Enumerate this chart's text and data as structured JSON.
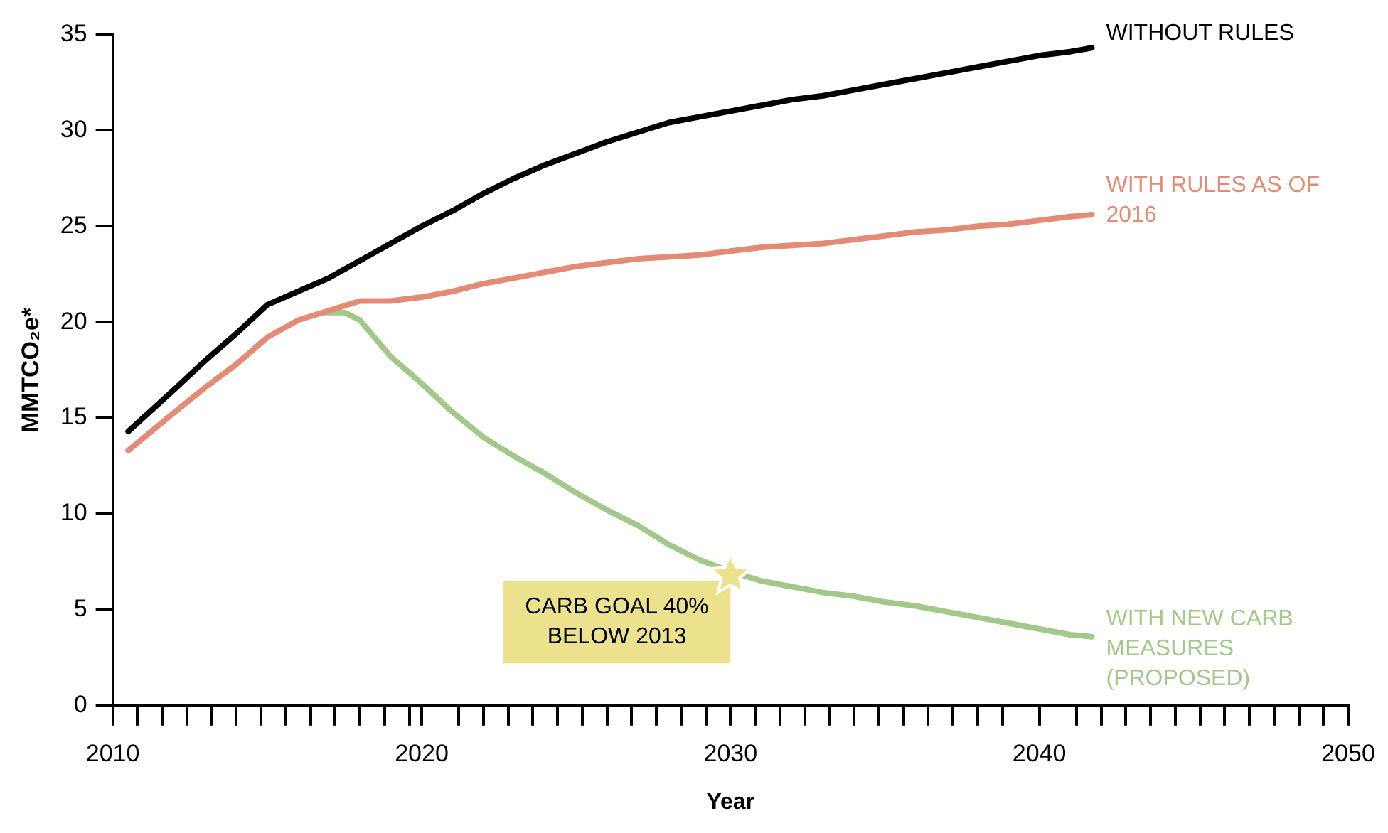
{
  "chart_data": {
    "type": "line",
    "xlabel": "Year",
    "ylabel": "MMTCO₂e*",
    "xlim": [
      2010,
      2050
    ],
    "ylim": [
      0,
      35
    ],
    "xticks": [
      2010,
      {
        "value": 2010.8,
        "label": null
      },
      {
        "value": 2011.6,
        "label": null
      },
      {
        "value": 2012.4,
        "label": null
      },
      {
        "value": 2013.2,
        "label": null
      },
      {
        "value": 2014,
        "label": null
      },
      {
        "value": 2014.8,
        "label": null
      },
      {
        "value": 2015.6,
        "label": null
      },
      {
        "value": 2016.4,
        "label": null
      },
      {
        "value": 2017.2,
        "label": null
      },
      {
        "value": 2018,
        "label": null
      },
      {
        "value": 2018.8,
        "label": null
      },
      {
        "value": 2019.6,
        "label": null
      },
      {
        "value": 2021.2,
        "label": null
      },
      {
        "value": 2022,
        "label": null
      },
      {
        "value": 2022.8,
        "label": null
      },
      {
        "value": 2023.6,
        "label": null
      },
      {
        "value": 2024.4,
        "label": null
      },
      {
        "value": 2025.2,
        "label": null
      },
      {
        "value": 2026,
        "label": null
      },
      {
        "value": 2026.8,
        "label": null
      },
      {
        "value": 2027.6,
        "label": null
      },
      {
        "value": 2028.4,
        "label": null
      },
      {
        "value": 2029.2,
        "label": null
      },
      {
        "value": 2030,
        "label": "2030"
      },
      {
        "value": 2030.8,
        "label": null
      },
      {
        "value": 2031.6,
        "label": null
      },
      {
        "value": 2032.4,
        "label": null
      },
      {
        "value": 2033.2,
        "label": null
      },
      {
        "value": 2034,
        "label": null
      },
      {
        "value": 2034.8,
        "label": null
      },
      {
        "value": 2035.6,
        "label": null
      },
      {
        "value": 2036.4,
        "label": null
      },
      {
        "value": 2037.2,
        "label": null
      },
      {
        "value": 2038,
        "label": null
      },
      {
        "value": 2038.8,
        "label": null
      },
      {
        "value": 2040,
        "label": "2040"
      },
      {
        "value": 2041.2,
        "label": null
      },
      {
        "value": 2042,
        "label": null
      },
      {
        "value": 2042.8,
        "label": null
      },
      {
        "value": 2043.6,
        "label": null
      },
      {
        "value": 2044.4,
        "label": null
      },
      {
        "value": 2045.2,
        "label": null
      },
      {
        "value": 2046,
        "label": null
      },
      {
        "value": 2046.8,
        "label": null
      },
      {
        "value": 2047.6,
        "label": null
      },
      {
        "value": 2048.4,
        "label": null
      },
      {
        "value": 2049.2,
        "label": null
      },
      2050,
      {
        "value": 2020,
        "label": "2020"
      }
    ],
    "yticks": [
      0,
      5,
      10,
      15,
      20,
      25,
      30,
      35
    ],
    "grid": false,
    "legend": false,
    "marker": "none",
    "line_style": "solid",
    "series": [
      {
        "name": "WITHOUT RULES",
        "color": "#000000",
        "x": [
          2010.5,
          2012,
          2013,
          2014,
          2015,
          2016,
          2017,
          2018,
          2019,
          2020,
          2021,
          2022,
          2023,
          2024,
          2025,
          2026,
          2027,
          2028,
          2029,
          2030,
          2031,
          2032,
          2033,
          2034,
          2035,
          2036,
          2037,
          2038,
          2039,
          2040,
          2041,
          2041.7
        ],
        "values": [
          14.3,
          16.5,
          18,
          19.4,
          20.9,
          21.6,
          22.3,
          23.2,
          24.1,
          25,
          25.8,
          26.7,
          27.5,
          28.2,
          28.8,
          29.4,
          29.9,
          30.4,
          30.7,
          31,
          31.3,
          31.6,
          31.8,
          32.1,
          32.4,
          32.7,
          33,
          33.3,
          33.6,
          33.9,
          34.1,
          34.3
        ]
      },
      {
        "name": "WITH RULES AS OF 2016",
        "color": "#e38b74",
        "x": [
          2010.5,
          2012,
          2013,
          2014,
          2015,
          2016,
          2017,
          2018,
          2019,
          2020,
          2021,
          2022,
          2023,
          2024,
          2025,
          2026,
          2027,
          2028,
          2029,
          2030,
          2031,
          2032,
          2033,
          2034,
          2035,
          2036,
          2037,
          2038,
          2039,
          2040,
          2041,
          2041.7
        ],
        "values": [
          13.3,
          15.3,
          16.6,
          17.8,
          19.2,
          20.1,
          20.6,
          21.1,
          21.1,
          21.3,
          21.6,
          22,
          22.3,
          22.6,
          22.9,
          23.1,
          23.3,
          23.4,
          23.5,
          23.7,
          23.9,
          24,
          24.1,
          24.3,
          24.5,
          24.7,
          24.8,
          25,
          25.1,
          25.3,
          25.5,
          25.6
        ]
      },
      {
        "name": "WITH NEW CARB MEASURES (PROPOSED)",
        "color": "#a3c98a",
        "x": [
          2016.8,
          2017.5,
          2018,
          2019,
          2020,
          2021,
          2022,
          2023,
          2024,
          2025,
          2026,
          2027,
          2028,
          2029,
          2030,
          2031,
          2032,
          2033,
          2034,
          2035,
          2036,
          2037,
          2038,
          2039,
          2040,
          2041,
          2041.7
        ],
        "values": [
          20.5,
          20.5,
          20.1,
          18.2,
          16.8,
          15.3,
          14,
          13,
          12.1,
          11.1,
          10.2,
          9.4,
          8.4,
          7.6,
          7,
          6.5,
          6.2,
          5.9,
          5.7,
          5.4,
          5.2,
          4.9,
          4.6,
          4.3,
          4,
          3.7,
          3.6
        ]
      }
    ],
    "annotations": [
      {
        "text": "CARB GOAL 40% BELOW 2013",
        "x": 2030,
        "y": 6.8
      }
    ]
  }
}
